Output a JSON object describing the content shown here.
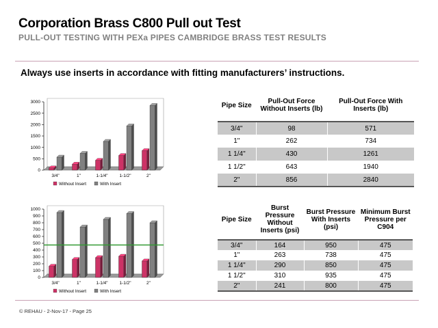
{
  "header": {
    "title": "Corporation Brass C800 Pull out Test",
    "subtitle": "PULL-OUT TESTING WITH PEXa PIPES CAMBRIDGE  BRASS TEST RESULTS",
    "notice": "Always use inserts in accordance with fitting manufacturers’ instructions."
  },
  "colors": {
    "without": "#cc3366",
    "with": "#808080",
    "limit_line": "#339933",
    "table_stripe": "#c8c8c8"
  },
  "chart_data": [
    {
      "type": "bar",
      "categories": [
        "3/4\"",
        "1\"",
        "1-1/4\"",
        "1-1/2\"",
        "2\""
      ],
      "series": [
        {
          "name": "Without Insert",
          "values": [
            98,
            262,
            430,
            643,
            856
          ]
        },
        {
          "name": "With Insert",
          "values": [
            571,
            734,
            1261,
            1940,
            2840
          ]
        }
      ],
      "ylim": [
        0,
        3000
      ],
      "yticks": [
        "0",
        "500",
        "1000",
        "1500",
        "2000",
        "2500",
        "3000"
      ],
      "grid": false,
      "legend": "bottom"
    },
    {
      "type": "bar",
      "categories": [
        "3/4\"",
        "1\"",
        "1-1/4\"",
        "1-1/2\"",
        "2\""
      ],
      "series": [
        {
          "name": "Without Insert",
          "values": [
            164,
            263,
            290,
            310,
            241
          ]
        },
        {
          "name": "With Insert",
          "values": [
            950,
            738,
            850,
            935,
            800
          ]
        }
      ],
      "reference_line": 475,
      "ylim": [
        0,
        1000
      ],
      "yticks": [
        "0",
        "100",
        "200",
        "300",
        "400",
        "500",
        "600",
        "700",
        "800",
        "900",
        "1000"
      ],
      "grid": false,
      "legend": "bottom"
    }
  ],
  "table1": {
    "headers": [
      "Pipe Size",
      "Pull-Out  Force Without Inserts (lb)",
      "Pull-Out  Force With Inserts (lb)"
    ],
    "rows": [
      [
        "3/4\"",
        "98",
        "571"
      ],
      [
        "1\"",
        "262",
        "734"
      ],
      [
        "1 1/4\"",
        "430",
        "1261"
      ],
      [
        "1 1/2\"",
        "643",
        "1940"
      ],
      [
        "2\"",
        "856",
        "2840"
      ]
    ]
  },
  "table2": {
    "headers": [
      "Pipe Size",
      "Burst Pressure Without Inserts (psi)",
      "Burst Pressure With Inserts (psi)",
      "Minimum Burst Pressure per C904"
    ],
    "rows": [
      [
        "3/4\"",
        "164",
        "950",
        "475"
      ],
      [
        "1\"",
        "263",
        "738",
        "475"
      ],
      [
        "1 1/4\"",
        "290",
        "850",
        "475"
      ],
      [
        "1 1/2\"",
        "310",
        "935",
        "475"
      ],
      [
        "2\"",
        "241",
        "800",
        "475"
      ]
    ]
  },
  "footer": "© REHAU - 2-Nov-17 - Page 25"
}
